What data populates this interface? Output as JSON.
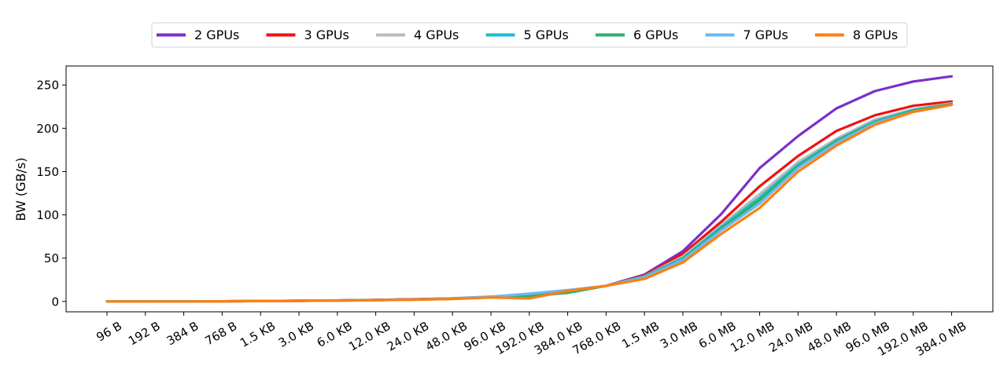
{
  "chart_data": {
    "type": "line",
    "title": "",
    "xlabel": "",
    "ylabel": "BW (GB/s)",
    "ylim": [
      -12,
      272
    ],
    "yticks": [
      0,
      50,
      100,
      150,
      200,
      250
    ],
    "grid": false,
    "legend_position": "top-center",
    "categories": [
      "96 B",
      "192 B",
      "384 B",
      "768 B",
      "1.5 KB",
      "3.0 KB",
      "6.0 KB",
      "12.0 KB",
      "24.0 KB",
      "48.0 KB",
      "96.0 KB",
      "192.0 KB",
      "384.0 KB",
      "768.0 KB",
      "1.5 MB",
      "3.0 MB",
      "6.0 MB",
      "12.0 MB",
      "24.0 MB",
      "48.0 MB",
      "96.0 MB",
      "192.0 MB",
      "384.0 MB"
    ],
    "series": [
      {
        "name": "2 GPUs",
        "color": "#7b2fc9",
        "values": [
          0,
          0,
          0,
          0.2,
          0.4,
          0.8,
          1.2,
          1.8,
          2.5,
          3.5,
          5.5,
          7,
          11,
          18,
          31,
          58,
          101,
          154,
          191,
          223,
          243,
          254,
          260
        ]
      },
      {
        "name": "3 GPUs",
        "color": "#ee1111",
        "values": [
          0,
          0,
          0,
          0.2,
          0.4,
          0.7,
          1.1,
          1.6,
          2.3,
          3.3,
          5,
          6,
          11,
          18,
          30,
          55,
          92,
          133,
          168,
          197,
          215,
          226,
          231
        ]
      },
      {
        "name": "4 GPUs",
        "color": "#bbbbbb",
        "values": [
          0,
          0,
          0,
          0.2,
          0.4,
          0.7,
          1,
          1.5,
          2.2,
          3.2,
          5,
          6,
          10.5,
          18,
          29,
          52,
          88,
          124,
          161,
          188,
          210,
          222,
          229
        ]
      },
      {
        "name": "5 GPUs",
        "color": "#17becf",
        "values": [
          0,
          0,
          0,
          0.2,
          0.4,
          0.7,
          1,
          1.5,
          2.2,
          3.1,
          5,
          6,
          10,
          18,
          29,
          50,
          86,
          120,
          158,
          186,
          208,
          221,
          228
        ]
      },
      {
        "name": "6 GPUs",
        "color": "#2eb06a",
        "values": [
          0,
          0,
          0,
          0.2,
          0.4,
          0.7,
          1,
          1.5,
          2.2,
          3.1,
          5,
          6,
          10,
          18,
          28,
          49,
          84,
          117,
          156,
          185,
          207,
          220,
          228
        ]
      },
      {
        "name": "7 GPUs",
        "color": "#6cb8f5",
        "values": [
          0,
          0,
          0,
          0.2,
          0.4,
          0.7,
          1,
          1.5,
          2.2,
          3.3,
          5.5,
          9,
          13,
          18,
          28,
          48,
          82,
          113,
          154,
          183,
          206,
          219,
          227
        ]
      },
      {
        "name": "8 GPUs",
        "color": "#ff7f0e",
        "values": [
          0,
          0,
          0,
          0.2,
          0.4,
          0.7,
          1,
          1.4,
          2,
          2.8,
          4.5,
          3.5,
          12,
          18,
          26,
          45,
          78,
          108,
          150,
          180,
          204,
          219,
          227
        ]
      }
    ]
  }
}
